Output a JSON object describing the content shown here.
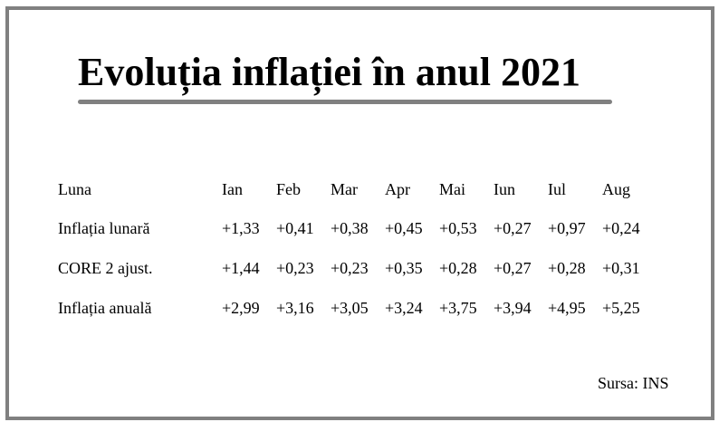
{
  "title": "Evoluția inflației în anul 2021",
  "table": {
    "header": {
      "label": "Luna",
      "months": [
        "Ian",
        "Feb",
        "Mar",
        "Apr",
        "Mai",
        "Iun",
        "Iul",
        "Aug"
      ]
    },
    "rows": [
      {
        "label": "Inflația lunară",
        "values": [
          "+1,33",
          "+0,41",
          "+0,38",
          "+0,45",
          "+0,53",
          "+0,27",
          "+0,97",
          "+0,24"
        ]
      },
      {
        "label": "CORE 2 ajust.",
        "values": [
          "+1,44",
          "+0,23",
          "+0,23",
          "+0,35",
          "+0,28",
          "+0,27",
          "+0,28",
          "+0,31"
        ]
      },
      {
        "label": "Inflația anuală",
        "values": [
          "+2,99",
          "+3,16",
          "+3,05",
          "+3,24",
          "+3,75",
          "+3,94",
          "+4,95",
          "+5,25"
        ]
      }
    ]
  },
  "source": "Sursa: INS",
  "colors": {
    "frame": "#808080",
    "underline": "#808080",
    "text": "#000000",
    "background": "#ffffff"
  }
}
